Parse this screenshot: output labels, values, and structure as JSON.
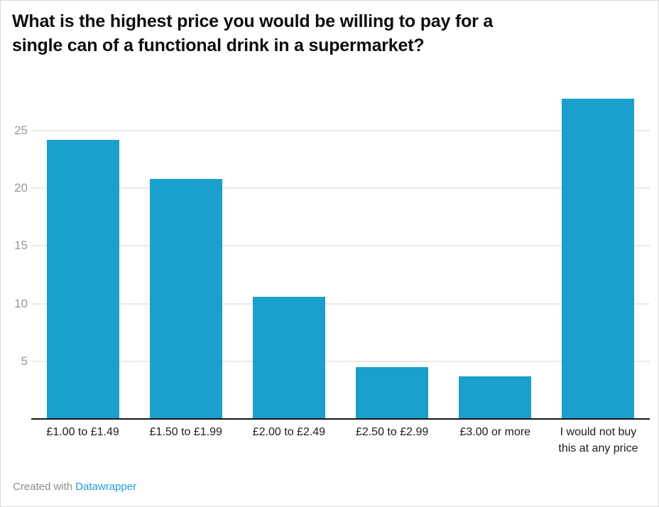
{
  "header": {
    "title": "What is the highest price you would be willing to pay for a single can of a functional drink in a supermarket?"
  },
  "footer": {
    "prefix": "Created with",
    "link": "Datawrapper",
    "link_color": "#1d9cd8"
  },
  "colors": {
    "bar": "#19a0cd",
    "gridline": "#e8e8e8",
    "axis_line": "#141414",
    "y_tick_label": "#989898",
    "x_tick_label": "#1c1c1c"
  },
  "chart_data": {
    "type": "bar",
    "title": "What is the highest price you would be willing to pay for a single can of a functional drink in a supermarket?",
    "categories": [
      "£1.00 to £1.49",
      "£1.50 to £1.99",
      "£2.00 to £2.49",
      "£2.50 to £2.99",
      "£3.00 or more",
      "I would not buy this at any price"
    ],
    "values": [
      24.2,
      20.8,
      10.6,
      4.5,
      3.7,
      27.8
    ],
    "xlabel": "",
    "ylabel": "",
    "ylim": [
      0,
      28.2
    ],
    "yticks": [
      5,
      10,
      15,
      20,
      25
    ],
    "grid": true,
    "legend": false,
    "bar_color": "#19a0cd"
  }
}
